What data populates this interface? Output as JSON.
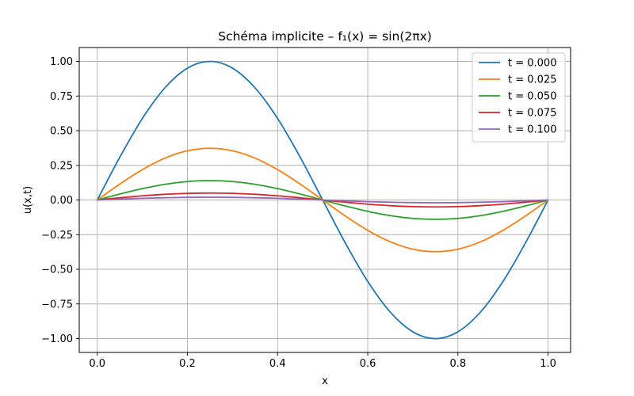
{
  "chart_data": {
    "type": "line",
    "title": "Schéma implicite – f₁(x) = sin(2πx)",
    "xlabel": "x",
    "ylabel": "u(x,t)",
    "xlim": [
      -0.04,
      1.05
    ],
    "ylim": [
      -1.1,
      1.1
    ],
    "grid": true,
    "legend_position": "top-right",
    "x_ticks": [
      0.0,
      0.2,
      0.4,
      0.6,
      0.8,
      1.0
    ],
    "x_tick_labels": [
      "0.0",
      "0.2",
      "0.4",
      "0.6",
      "0.8",
      "1.0"
    ],
    "y_ticks": [
      1.0,
      0.75,
      0.5,
      0.25,
      0.0,
      -0.25,
      -0.5,
      -0.75,
      -1.0
    ],
    "y_tick_labels": [
      "1.00",
      "0.75",
      "0.50",
      "0.25",
      "0.00",
      "−0.25",
      "−0.50",
      "−0.75",
      "−1.00"
    ],
    "x": [
      0.0,
      0.05,
      0.1,
      0.15,
      0.2,
      0.25,
      0.3,
      0.35,
      0.4,
      0.45,
      0.5,
      0.55,
      0.6,
      0.65,
      0.7,
      0.75,
      0.8,
      0.85,
      0.9,
      0.95,
      1.0
    ],
    "series": [
      {
        "name": "t = 0.000",
        "color": "#1f77b4",
        "values": [
          0.0,
          0.309,
          0.588,
          0.809,
          0.951,
          1.0,
          0.951,
          0.809,
          0.588,
          0.309,
          0.0,
          -0.309,
          -0.588,
          -0.809,
          -0.951,
          -1.0,
          -0.951,
          -0.809,
          -0.588,
          -0.309,
          0.0
        ]
      },
      {
        "name": "t = 0.025",
        "color": "#ff7f0e",
        "values": [
          0.0,
          0.115,
          0.219,
          0.302,
          0.355,
          0.373,
          0.355,
          0.302,
          0.219,
          0.115,
          0.0,
          -0.115,
          -0.219,
          -0.302,
          -0.355,
          -0.373,
          -0.355,
          -0.302,
          -0.219,
          -0.115,
          0.0
        ]
      },
      {
        "name": "t = 0.050",
        "color": "#2ca02c",
        "values": [
          0.0,
          0.043,
          0.082,
          0.113,
          0.133,
          0.14,
          0.133,
          0.113,
          0.082,
          0.043,
          0.0,
          -0.043,
          -0.082,
          -0.113,
          -0.133,
          -0.14,
          -0.133,
          -0.113,
          -0.082,
          -0.043,
          0.0
        ]
      },
      {
        "name": "t = 0.075",
        "color": "#d62728",
        "values": [
          0.0,
          0.016,
          0.03,
          0.041,
          0.048,
          0.05,
          0.048,
          0.041,
          0.03,
          0.016,
          0.0,
          -0.016,
          -0.03,
          -0.041,
          -0.048,
          -0.05,
          -0.048,
          -0.041,
          -0.03,
          -0.016,
          0.0
        ]
      },
      {
        "name": "t = 0.100",
        "color": "#9467bd",
        "values": [
          0.0,
          0.006,
          0.012,
          0.016,
          0.019,
          0.02,
          0.019,
          0.016,
          0.012,
          0.006,
          0.0,
          -0.006,
          -0.012,
          -0.016,
          -0.019,
          -0.02,
          -0.019,
          -0.016,
          -0.012,
          -0.006,
          0.0
        ]
      }
    ]
  }
}
